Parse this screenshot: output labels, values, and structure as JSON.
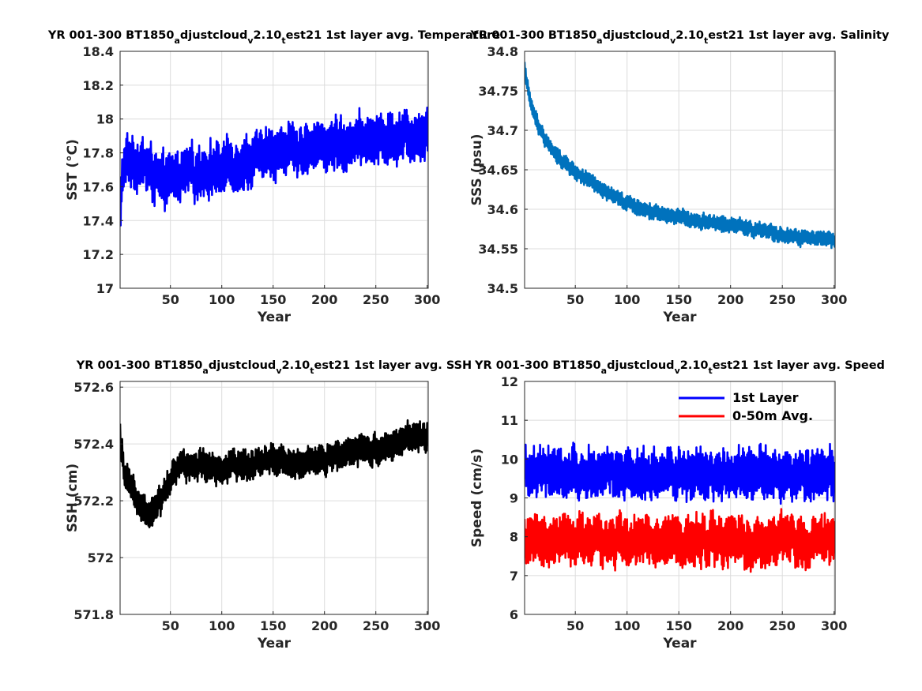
{
  "chart_data": [
    {
      "id": "sst",
      "type": "line",
      "title": "YR 001-300 BT1850_adjustcloud_v2.10_test21 1st layer avg. Temperature",
      "xlabel": "Year",
      "ylabel": "SST (°C)",
      "xlim": [
        1,
        301
      ],
      "ylim": [
        17,
        18.4
      ],
      "xticks": [
        50,
        100,
        150,
        200,
        250,
        300
      ],
      "yticks": [
        17,
        17.2,
        17.4,
        17.6,
        17.8,
        18,
        18.2,
        18.4
      ],
      "grid": true,
      "colors": {
        "line": "#0000ff"
      },
      "series": [
        {
          "trend_x": [
            1,
            3,
            6,
            10,
            20,
            30,
            40,
            50,
            60,
            75,
            100,
            125,
            150,
            175,
            200,
            225,
            250,
            275,
            300
          ],
          "trend_y": [
            17.35,
            17.68,
            17.74,
            17.76,
            17.74,
            17.7,
            17.62,
            17.64,
            17.66,
            17.69,
            17.72,
            17.75,
            17.8,
            17.82,
            17.85,
            17.86,
            17.88,
            17.9,
            17.92
          ],
          "amplitude": 0.2
        }
      ]
    },
    {
      "id": "sss",
      "type": "line",
      "title": "YR 001-300 BT1850_adjustcloud_v2.10_test21 1st layer avg. Salinity",
      "xlabel": "Year",
      "ylabel": "SSS (psu)",
      "xlim": [
        1,
        301
      ],
      "ylim": [
        34.5,
        34.8
      ],
      "xticks": [
        50,
        100,
        150,
        200,
        250,
        300
      ],
      "yticks": [
        34.5,
        34.55,
        34.6,
        34.65,
        34.7,
        34.75,
        34.8
      ],
      "grid": true,
      "colors": {
        "line": "#0072bd"
      },
      "series": [
        {
          "trend_x": [
            1,
            5,
            10,
            20,
            30,
            50,
            75,
            100,
            125,
            150,
            175,
            200,
            225,
            250,
            275,
            300
          ],
          "trend_y": [
            34.78,
            34.745,
            34.72,
            34.69,
            34.67,
            34.647,
            34.625,
            34.607,
            34.597,
            34.59,
            34.585,
            34.58,
            34.574,
            34.567,
            34.563,
            34.56
          ],
          "amplitude": 0.013
        }
      ]
    },
    {
      "id": "ssh",
      "type": "line",
      "title": "YR 001-300 BT1850_adjustcloud_v2.10_test21 1st layer avg. SSH",
      "xlabel": "Year",
      "ylabel": "SSH (cm)",
      "xlim": [
        1,
        301
      ],
      "ylim": [
        571.8,
        572.62
      ],
      "xticks": [
        50,
        100,
        150,
        200,
        250,
        300
      ],
      "yticks": [
        571.8,
        572,
        572.2,
        572.4,
        572.6
      ],
      "grid": true,
      "colors": {
        "line": "#000000"
      },
      "series": [
        {
          "trend_x": [
            1,
            5,
            10,
            20,
            30,
            40,
            50,
            60,
            75,
            100,
            125,
            150,
            175,
            200,
            225,
            250,
            275,
            300
          ],
          "trend_y": [
            572.42,
            572.3,
            572.25,
            572.2,
            572.15,
            572.2,
            572.27,
            572.33,
            572.33,
            572.31,
            572.33,
            572.35,
            572.33,
            572.34,
            572.38,
            572.38,
            572.41,
            572.43
          ],
          "amplitude": 0.07
        }
      ]
    },
    {
      "id": "speed",
      "type": "line",
      "title": "YR 001-300 BT1850_adjustcloud_v2.10_test21 1st layer avg. Speed",
      "xlabel": "Year",
      "ylabel": "Speed (cm/s)",
      "xlim": [
        1,
        301
      ],
      "ylim": [
        6,
        12
      ],
      "xticks": [
        50,
        100,
        150,
        200,
        250,
        300
      ],
      "yticks": [
        6,
        7,
        8,
        9,
        10,
        11,
        12
      ],
      "grid": true,
      "legend": "top-right",
      "series": [
        {
          "name": "1st Layer",
          "color": "#0000ff",
          "mean": 9.6,
          "amplitude": 0.85
        },
        {
          "name": "0-50m Avg.",
          "color": "#ff0000",
          "mean": 7.9,
          "amplitude": 0.85
        }
      ]
    }
  ]
}
